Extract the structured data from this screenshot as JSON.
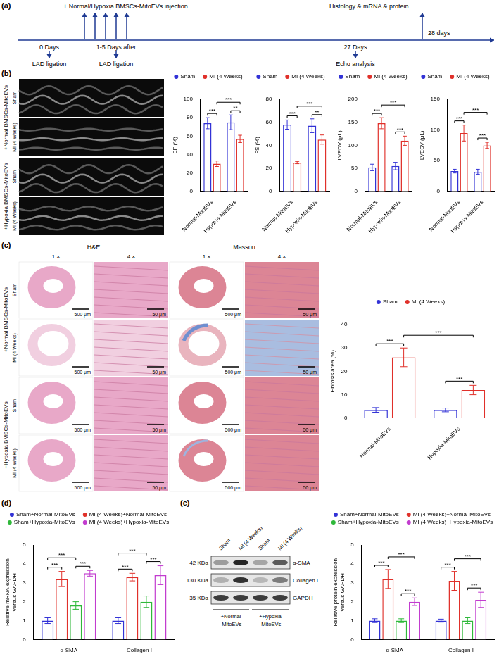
{
  "panels": {
    "a": {
      "letter": "(a)",
      "injection": "+ Normal/Hypoxia BMSCs-MitoEVs injection",
      "harvest": "Histology & mRNA & protein",
      "harvest_day": "28 days",
      "events": [
        {
          "day": "0 Days",
          "event": "LAD ligation"
        },
        {
          "day": "1-5 Days after",
          "event": "LAD ligation"
        },
        {
          "day": "27 Days",
          "event": "Echo analysis"
        }
      ]
    },
    "b": {
      "letter": "(b)",
      "row_groups": [
        {
          "label": "+Normal BMSCs-MitoEVs",
          "rows": [
            "Sham",
            "MI (4 Weeks)"
          ]
        },
        {
          "label": "+Hypoxia BMSCs-MitoEVs",
          "rows": [
            "Sham",
            "MI (4 Weeks)"
          ]
        }
      ]
    },
    "c": {
      "letter": "(c)",
      "stains": [
        {
          "label": "H&E",
          "magnifications": [
            {
              "label": "1 ×",
              "scale_bar": "500 μm"
            },
            {
              "label": "4 ×",
              "scale_bar": "50 μm"
            }
          ]
        },
        {
          "label": "Masson",
          "magnifications": [
            {
              "label": "1 ×",
              "scale_bar": "500 μm"
            },
            {
              "label": "4 ×",
              "scale_bar": "50 μm"
            }
          ]
        }
      ],
      "row_groups": [
        {
          "label": "+Normal BMSCs-MitoEVs",
          "rows": [
            "Sham",
            "MI (4 Weeks)"
          ]
        },
        {
          "label": "+Hypoxia BMSCs-MitoEVs",
          "rows": [
            "Sham",
            "MI (4 Weeks)"
          ]
        }
      ]
    },
    "d": {
      "letter": "(d)"
    },
    "e": {
      "letter": "(e)",
      "blot": {
        "lanes": [
          "Sham",
          "MI (4 Weeks)",
          "Sham",
          "MI (4 Weeks)"
        ],
        "lane_groups": [
          "+Normal -MitoEVs",
          "+Hypoxia -MitoEVs"
        ],
        "bands": [
          {
            "size": "42 KDa",
            "protein": "α-SMA"
          },
          {
            "size": "130 KDa",
            "protein": "Collagen I"
          },
          {
            "size": "35 KDa",
            "protein": "GAPDH"
          }
        ]
      }
    }
  },
  "chart_data": [
    {
      "type": "bar",
      "y_label": "EF (%)",
      "categories": [
        "Normal-MitoEVs",
        "Hypoxia-MitoEVs"
      ],
      "series": [
        {
          "name": "Sham",
          "color": "#3232d6",
          "values": [
            74,
            75
          ],
          "errors": [
            6,
            8
          ]
        },
        {
          "name": "MI (4 Weeks)",
          "color": "#e0302a",
          "values": [
            30,
            57
          ],
          "errors": [
            3,
            4
          ]
        }
      ],
      "ylim": [
        0,
        100
      ],
      "yticks": [
        0,
        20,
        40,
        60,
        80,
        100
      ],
      "grid": false,
      "legend": "top",
      "significance": [
        {
          "between": [
            [
              0,
              0
            ],
            [
              0,
              1
            ]
          ],
          "label": "***"
        },
        {
          "between": [
            [
              1,
              0
            ],
            [
              1,
              1
            ]
          ],
          "label": "**"
        },
        {
          "between": [
            [
              0,
              1
            ],
            [
              1,
              1
            ]
          ],
          "label": "***"
        }
      ]
    },
    {
      "type": "bar",
      "y_label": "FS (%)",
      "categories": [
        "Normal-MitoEVs",
        "Hypoxia-MitoEVs"
      ],
      "series": [
        {
          "name": "Sham",
          "color": "#3232d6",
          "values": [
            58,
            57
          ],
          "errors": [
            4,
            6
          ]
        },
        {
          "name": "MI (4 Weeks)",
          "color": "#e0302a",
          "values": [
            25,
            45
          ],
          "errors": [
            1,
            4
          ]
        }
      ],
      "ylim": [
        0,
        80
      ],
      "yticks": [
        0,
        20,
        40,
        60,
        80
      ],
      "grid": false,
      "legend": "top",
      "significance": [
        {
          "between": [
            [
              0,
              0
            ],
            [
              0,
              1
            ]
          ],
          "label": "***"
        },
        {
          "between": [
            [
              1,
              0
            ],
            [
              1,
              1
            ]
          ],
          "label": "**"
        },
        {
          "between": [
            [
              0,
              1
            ],
            [
              1,
              1
            ]
          ],
          "label": "***"
        }
      ]
    },
    {
      "type": "bar",
      "y_label": "LVEDV (μL)",
      "categories": [
        "Normal-MitoEVs",
        "Hypoxia-MitoEVs"
      ],
      "series": [
        {
          "name": "Sham",
          "color": "#3232d6",
          "values": [
            52,
            55
          ],
          "errors": [
            7,
            8
          ]
        },
        {
          "name": "MI (4 Weeks)",
          "color": "#e0302a",
          "values": [
            148,
            110
          ],
          "errors": [
            12,
            10
          ]
        }
      ],
      "ylim": [
        0,
        200
      ],
      "yticks": [
        0,
        50,
        100,
        150,
        200
      ],
      "grid": false,
      "legend": "top",
      "significance": [
        {
          "between": [
            [
              0,
              0
            ],
            [
              0,
              1
            ]
          ],
          "label": "***"
        },
        {
          "between": [
            [
              1,
              0
            ],
            [
              1,
              1
            ]
          ],
          "label": "***"
        },
        {
          "between": [
            [
              0,
              1
            ],
            [
              1,
              1
            ]
          ],
          "label": "***"
        }
      ]
    },
    {
      "type": "bar",
      "y_label": "LVESV (μL)",
      "categories": [
        "Normal-MitoEVs",
        "Hypoxia-MitoEVs"
      ],
      "series": [
        {
          "name": "Sham",
          "color": "#3232d6",
          "values": [
            33,
            32
          ],
          "errors": [
            3,
            4
          ]
        },
        {
          "name": "MI (4 Weeks)",
          "color": "#e0302a",
          "values": [
            95,
            75
          ],
          "errors": [
            13,
            5
          ]
        }
      ],
      "ylim": [
        0,
        150
      ],
      "yticks": [
        0,
        50,
        100,
        150
      ],
      "grid": false,
      "legend": "top",
      "significance": [
        {
          "between": [
            [
              0,
              0
            ],
            [
              0,
              1
            ]
          ],
          "label": "***"
        },
        {
          "between": [
            [
              1,
              0
            ],
            [
              1,
              1
            ]
          ],
          "label": "***"
        },
        {
          "between": [
            [
              0,
              1
            ],
            [
              1,
              1
            ]
          ],
          "label": "***"
        }
      ]
    },
    {
      "type": "bar",
      "y_label": "Fibrosis area (%)",
      "categories": [
        "Normal-MitoEVs",
        "Hypoxia-MitoEVs"
      ],
      "series": [
        {
          "name": "Sham",
          "color": "#3232d6",
          "values": [
            3.5,
            3.5
          ],
          "errors": [
            1,
            0.8
          ]
        },
        {
          "name": "MI (4 Weeks)",
          "color": "#e0302a",
          "values": [
            26,
            12
          ],
          "errors": [
            4,
            2
          ]
        }
      ],
      "ylim": [
        0,
        40
      ],
      "yticks": [
        0,
        10,
        20,
        30,
        40
      ],
      "grid": false,
      "legend": "top",
      "significance": [
        {
          "between": [
            [
              0,
              0
            ],
            [
              0,
              1
            ]
          ],
          "label": "***"
        },
        {
          "between": [
            [
              1,
              0
            ],
            [
              1,
              1
            ]
          ],
          "label": "***"
        },
        {
          "between": [
            [
              0,
              1
            ],
            [
              1,
              1
            ]
          ],
          "label": "***"
        }
      ]
    },
    {
      "type": "bar",
      "y_label": "Relative mRNA expression versus GAPDH",
      "categories": [
        "α-SMA",
        "Collagen I"
      ],
      "series": [
        {
          "name": "Sham+Normal-MitoEVs",
          "color": "#3232d6",
          "values": [
            1.0,
            1.0
          ],
          "errors": [
            0.15,
            0.15
          ]
        },
        {
          "name": "MI (4 Weeks)+Normal-MitoEVs",
          "color": "#e0302a",
          "values": [
            3.2,
            3.3
          ],
          "errors": [
            0.4,
            0.2
          ]
        },
        {
          "name": "Sham+Hypoxia-MitoEVs",
          "color": "#2fb83a",
          "values": [
            1.8,
            2.0
          ],
          "errors": [
            0.2,
            0.3
          ]
        },
        {
          "name": "MI (4 Weeks)+Hypoxia-MitoEVs",
          "color": "#c23ccf",
          "values": [
            3.5,
            3.4
          ],
          "errors": [
            0.15,
            0.5
          ]
        }
      ],
      "ylim": [
        0,
        5
      ],
      "yticks": [
        0,
        1,
        2,
        3,
        4,
        5
      ],
      "grid": false,
      "legend": "top",
      "significance": [
        {
          "between": [
            [
              0,
              0
            ],
            [
              0,
              1
            ]
          ],
          "label": "***"
        },
        {
          "between": [
            [
              0,
              2
            ],
            [
              0,
              3
            ]
          ],
          "label": "***"
        },
        {
          "between": [
            [
              0,
              0
            ],
            [
              0,
              2
            ]
          ],
          "label": "***"
        },
        {
          "between": [
            [
              1,
              0
            ],
            [
              1,
              1
            ]
          ],
          "label": "***"
        },
        {
          "between": [
            [
              1,
              2
            ],
            [
              1,
              3
            ]
          ],
          "label": "***"
        },
        {
          "between": [
            [
              1,
              0
            ],
            [
              1,
              2
            ]
          ],
          "label": "***"
        }
      ]
    },
    {
      "type": "bar",
      "y_label": "Relative protein expression versus GAPDH",
      "categories": [
        "α-SMA",
        "Collagen I"
      ],
      "series": [
        {
          "name": "Sham+Normal-MitoEVs",
          "color": "#3232d6",
          "values": [
            1.0,
            1.0
          ],
          "errors": [
            0.1,
            0.08
          ]
        },
        {
          "name": "MI (4 Weeks)+Normal-MitoEVs",
          "color": "#e0302a",
          "values": [
            3.2,
            3.1
          ],
          "errors": [
            0.5,
            0.5
          ]
        },
        {
          "name": "Sham+Hypoxia-MitoEVs",
          "color": "#2fb83a",
          "values": [
            1.0,
            1.0
          ],
          "errors": [
            0.1,
            0.15
          ]
        },
        {
          "name": "MI (4 Weeks)+Hypoxia-MitoEVs",
          "color": "#c23ccf",
          "values": [
            2.0,
            2.1
          ],
          "errors": [
            0.2,
            0.4
          ]
        }
      ],
      "ylim": [
        0,
        5
      ],
      "yticks": [
        0,
        1,
        2,
        3,
        4,
        5
      ],
      "grid": false,
      "legend": "top",
      "significance": [
        {
          "between": [
            [
              0,
              0
            ],
            [
              0,
              1
            ]
          ],
          "label": "***"
        },
        {
          "between": [
            [
              0,
              2
            ],
            [
              0,
              3
            ]
          ],
          "label": "***"
        },
        {
          "between": [
            [
              0,
              1
            ],
            [
              0,
              3
            ]
          ],
          "label": "***"
        },
        {
          "between": [
            [
              1,
              0
            ],
            [
              1,
              1
            ]
          ],
          "label": "***"
        },
        {
          "between": [
            [
              1,
              2
            ],
            [
              1,
              3
            ]
          ],
          "label": "***"
        },
        {
          "between": [
            [
              1,
              1
            ],
            [
              1,
              3
            ]
          ],
          "label": "***"
        }
      ]
    }
  ]
}
